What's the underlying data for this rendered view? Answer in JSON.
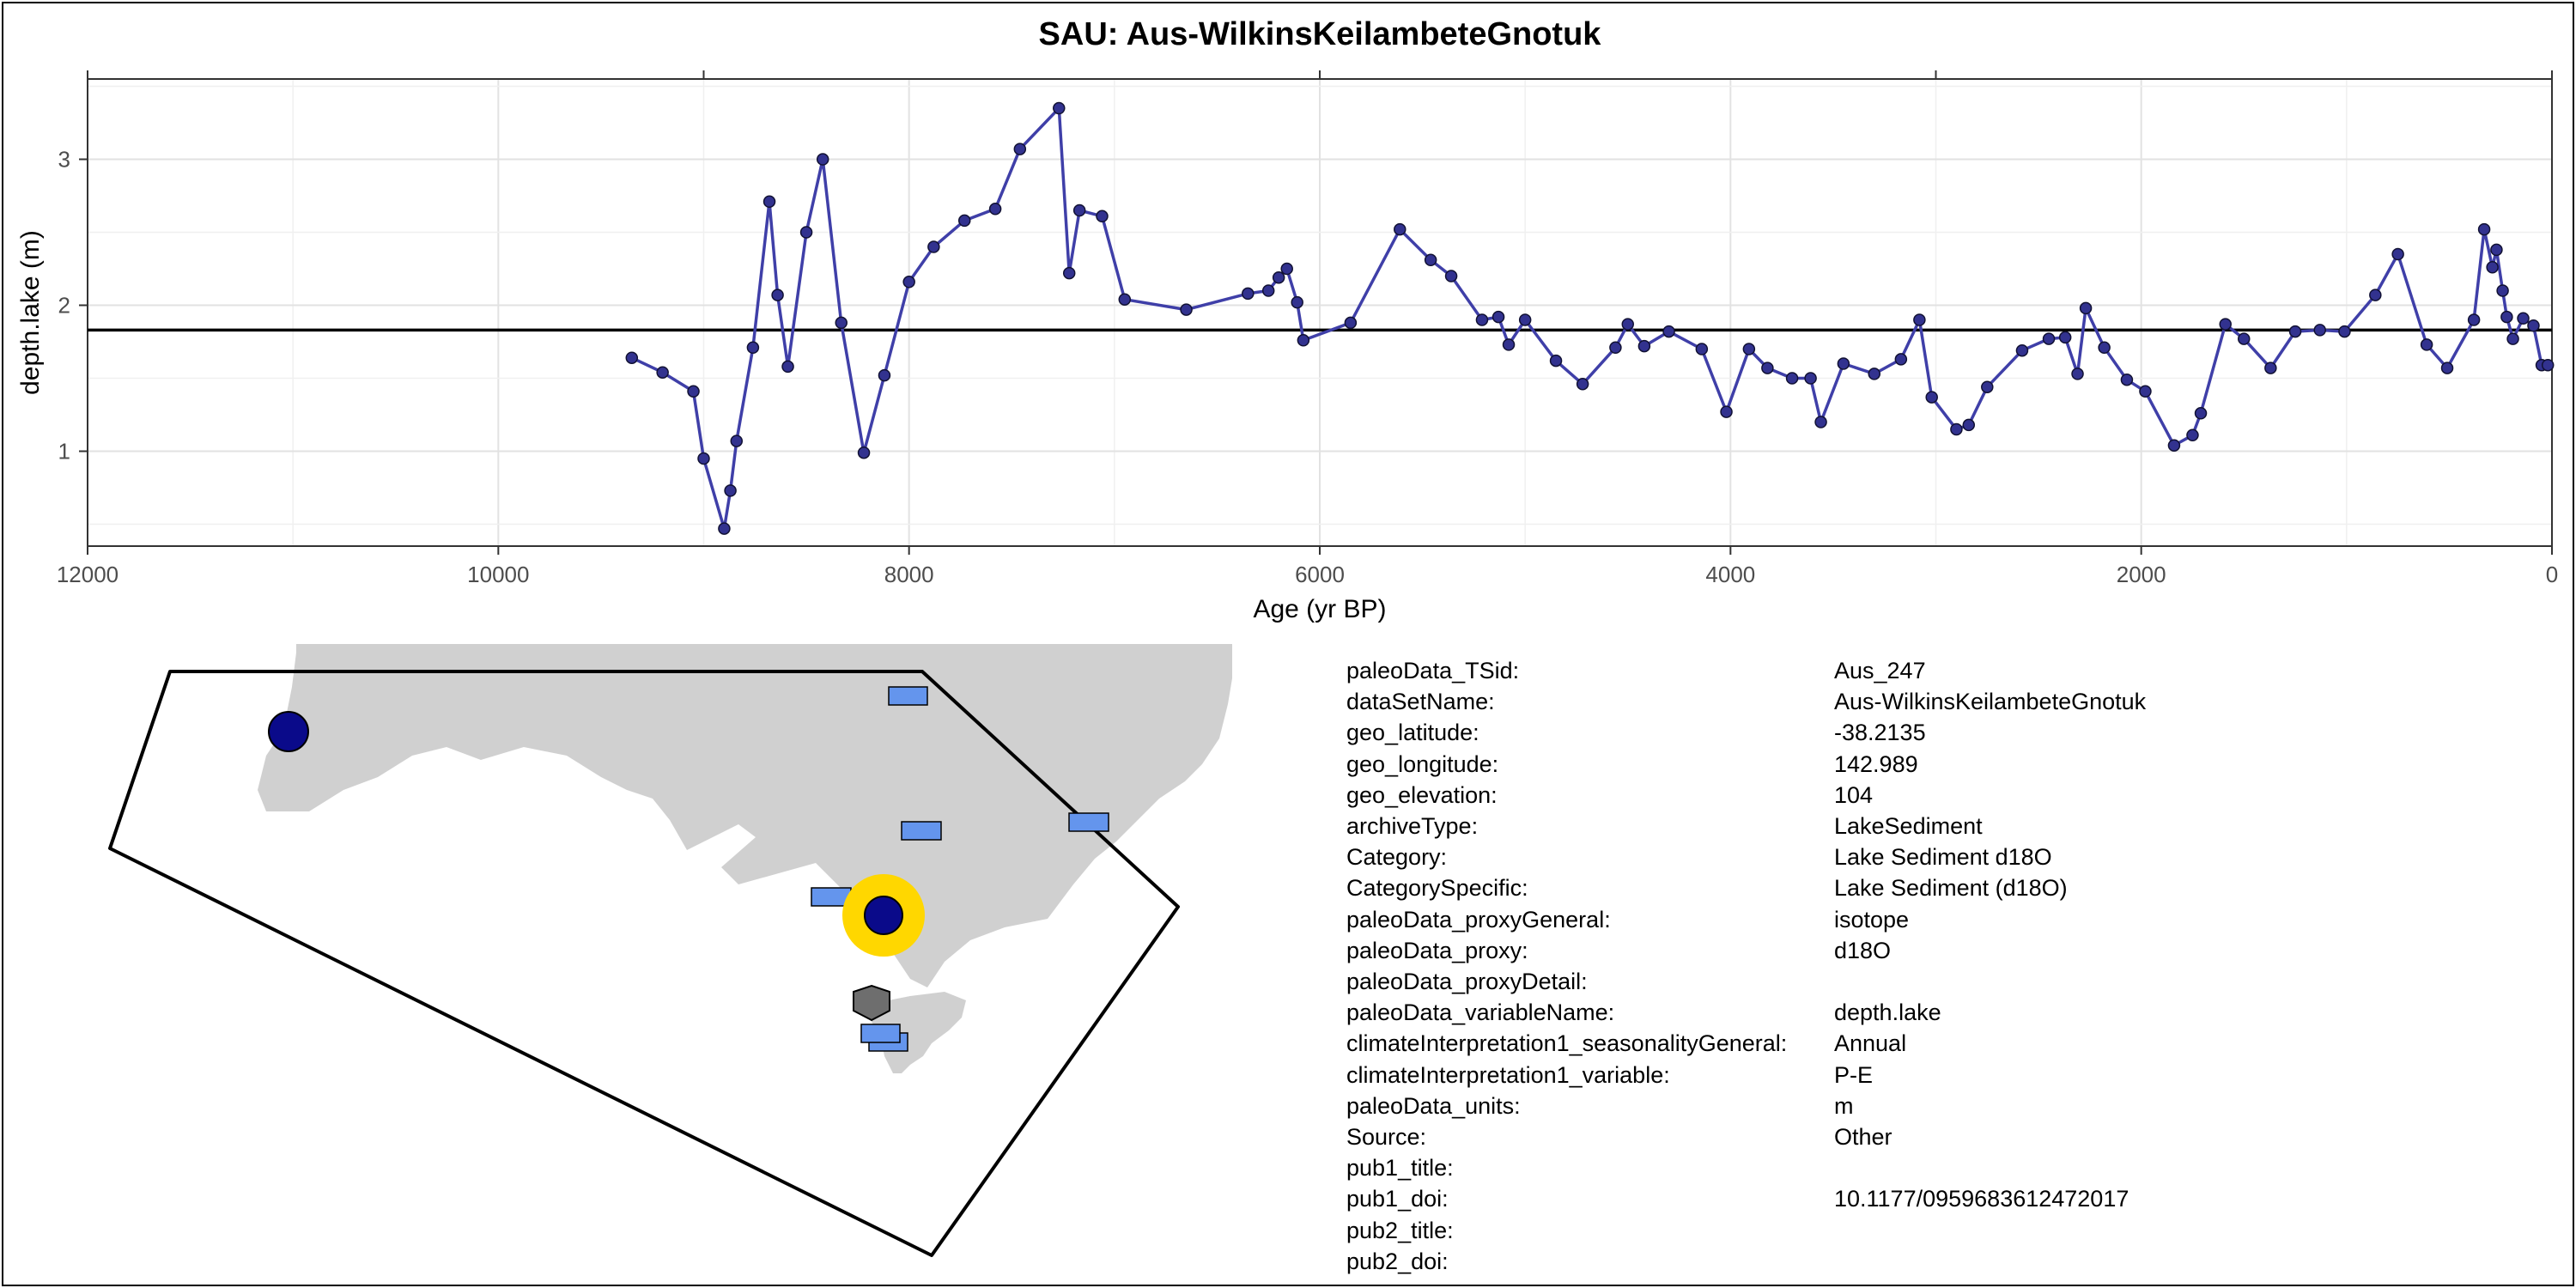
{
  "chart_data": {
    "type": "line",
    "title": "SAU: Aus-WilkinsKeilambeteGnotuk",
    "xlabel": "Age (yr BP)",
    "ylabel": "depth.lake (m)",
    "xlim": [
      12000,
      0
    ],
    "ylim": [
      0.35,
      3.55
    ],
    "x_ticks": [
      12000,
      10000,
      8000,
      6000,
      4000,
      2000,
      0
    ],
    "y_ticks": [
      1,
      2,
      3
    ],
    "grid": true,
    "reference_line_y": 1.83,
    "colors": {
      "line": "#3f3fa8",
      "point": "#32328f",
      "reference": "#000000"
    },
    "series": [
      {
        "x": [
          9350,
          9200,
          9050,
          9000,
          8900,
          8870,
          8840,
          8760,
          8680,
          8640,
          8590,
          8500,
          8420,
          8330,
          8220,
          8120,
          8000,
          7880,
          7730,
          7580,
          7460,
          7270,
          7220,
          7170,
          7060,
          6950,
          6650,
          6350,
          6250,
          6200,
          6160,
          6110,
          6080,
          5850,
          5610,
          5460,
          5360,
          5210,
          5130,
          5080,
          5000,
          4850,
          4720,
          4560,
          4500,
          4420,
          4300,
          4140,
          4020,
          3910,
          3820,
          3700,
          3610,
          3560,
          3450,
          3300,
          3170,
          3080,
          3020,
          2900,
          2840,
          2750,
          2580,
          2450,
          2370,
          2310,
          2270,
          2180,
          2070,
          1980,
          1840,
          1750,
          1710,
          1590,
          1500,
          1370,
          1250,
          1130,
          1010,
          860,
          750,
          610,
          510,
          380,
          330,
          290,
          270,
          240,
          220,
          190,
          140,
          90,
          50,
          20
        ],
        "y": [
          1.64,
          1.54,
          1.41,
          0.95,
          0.47,
          0.73,
          1.07,
          1.71,
          2.71,
          2.07,
          1.58,
          2.5,
          3.0,
          1.88,
          0.99,
          1.52,
          2.16,
          2.4,
          2.58,
          2.66,
          3.07,
          3.35,
          2.22,
          2.65,
          2.61,
          2.04,
          1.97,
          2.08,
          2.1,
          2.19,
          2.25,
          2.02,
          1.76,
          1.88,
          2.52,
          2.31,
          2.2,
          1.9,
          1.92,
          1.73,
          1.9,
          1.62,
          1.46,
          1.71,
          1.87,
          1.72,
          1.82,
          1.7,
          1.27,
          1.7,
          1.57,
          1.5,
          1.5,
          1.2,
          1.6,
          1.53,
          1.63,
          1.9,
          1.37,
          1.15,
          1.18,
          1.44,
          1.69,
          1.77,
          1.78,
          1.53,
          1.98,
          1.71,
          1.49,
          1.41,
          1.04,
          1.11,
          1.26,
          1.87,
          1.77,
          1.57,
          1.82,
          1.83,
          1.82,
          2.07,
          2.35,
          1.73,
          1.57,
          1.9,
          2.52,
          2.26,
          2.38,
          2.1,
          1.92,
          1.77,
          1.91,
          1.86,
          1.59,
          1.59
        ]
      }
    ]
  },
  "map": {
    "land_color": "#d0d0d0",
    "highlight_site_color": "#ffd700",
    "site_circle_color": "#0a0a8a",
    "rect_marker_color": "#6495ed",
    "hexagon_color": "#6e6e6e"
  },
  "metadata_table": [
    {
      "key": "paleoData_TSid:",
      "value": "Aus_247"
    },
    {
      "key": "dataSetName:",
      "value": "Aus-WilkinsKeilambeteGnotuk"
    },
    {
      "key": "geo_latitude:",
      "value": "-38.2135"
    },
    {
      "key": "geo_longitude:",
      "value": "142.989"
    },
    {
      "key": "geo_elevation:",
      "value": "104"
    },
    {
      "key": "archiveType:",
      "value": "LakeSediment"
    },
    {
      "key": "Category:",
      "value": "Lake Sediment d18O"
    },
    {
      "key": "CategorySpecific:",
      "value": "Lake Sediment (d18O)"
    },
    {
      "key": "paleoData_proxyGeneral:",
      "value": "isotope"
    },
    {
      "key": "paleoData_proxy:",
      "value": "d18O"
    },
    {
      "key": "paleoData_proxyDetail:",
      "value": ""
    },
    {
      "key": "paleoData_variableName:",
      "value": "depth.lake"
    },
    {
      "key": "climateInterpretation1_seasonalityGeneral:",
      "value": "Annual"
    },
    {
      "key": "climateInterpretation1_variable:",
      "value": "P-E"
    },
    {
      "key": "paleoData_units:",
      "value": "m"
    },
    {
      "key": "Source:",
      "value": "Other"
    },
    {
      "key": "pub1_title:",
      "value": ""
    },
    {
      "key": "pub1_doi:",
      "value": "10.1177/0959683612472017"
    },
    {
      "key": "pub2_title:",
      "value": ""
    },
    {
      "key": "pub2_doi:",
      "value": ""
    }
  ]
}
